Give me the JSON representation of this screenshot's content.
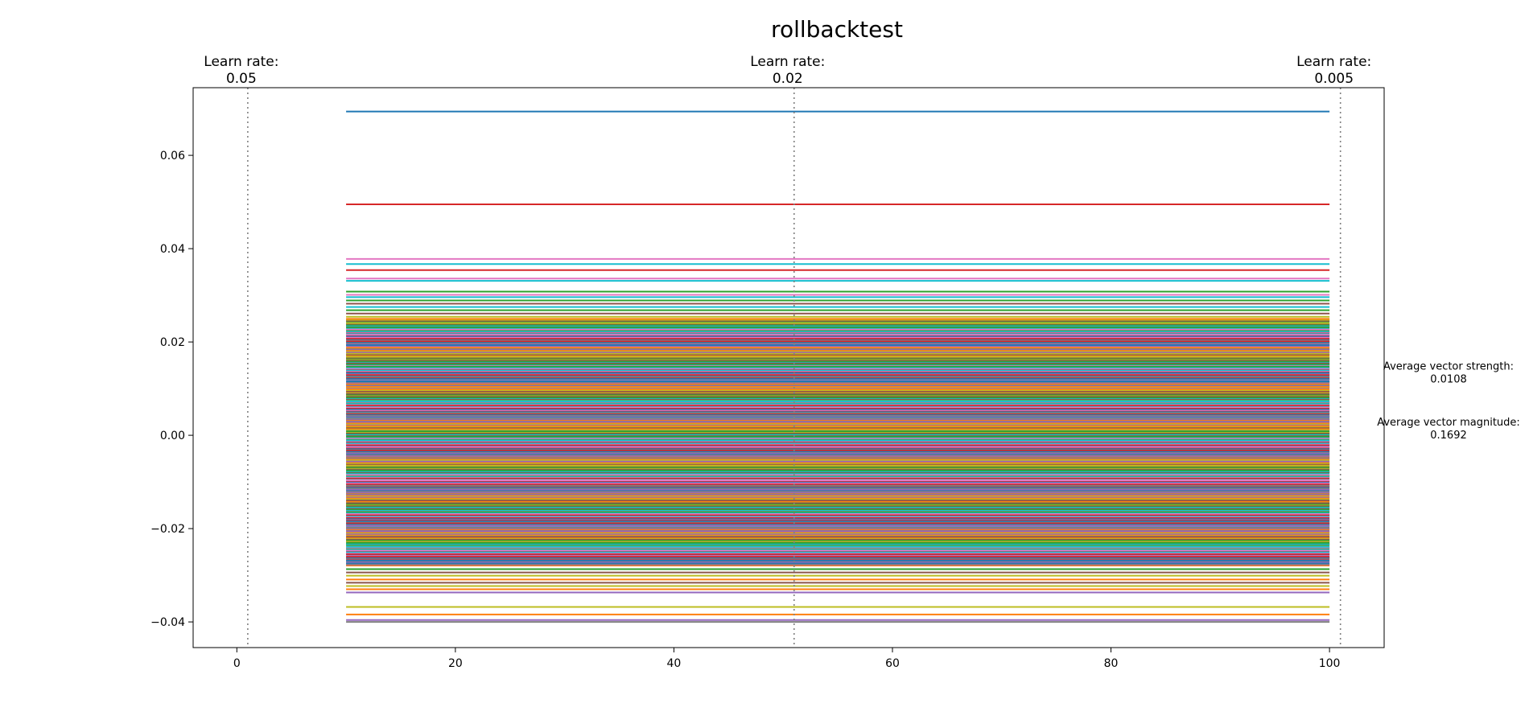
{
  "chart_data": {
    "type": "line",
    "title": "rollbacktest",
    "xlabel": "",
    "ylabel": "",
    "xlim": [
      -4,
      105
    ],
    "ylim": [
      -0.0455,
      0.0745
    ],
    "x_ticks": [
      0,
      20,
      40,
      60,
      80,
      100
    ],
    "y_ticks": [
      -0.04,
      -0.02,
      0.0,
      0.02,
      0.04,
      0.06
    ],
    "y_tick_labels": [
      "−0.04",
      "−0.02",
      "0.00",
      "0.02",
      "0.04",
      "0.06"
    ],
    "grid": false,
    "series_x_range": [
      10,
      100
    ],
    "series_count": 300,
    "series_colors": [
      "#1f77b4",
      "#ff7f0e",
      "#2ca02c",
      "#d62728",
      "#9467bd",
      "#8c564b",
      "#e377c2",
      "#7f7f7f",
      "#bcbd22",
      "#17becf"
    ],
    "outlier_levels": [
      0.0694,
      0.0495,
      0.0378,
      0.0367,
      0.0354,
      0.0336,
      0.0331,
      0.0308,
      0.0301,
      0.0296,
      0.0289,
      0.0282,
      0.0275,
      0.0268,
      0.0261,
      0.0254,
      -0.0287,
      -0.0294,
      -0.0301,
      -0.0309,
      -0.0316,
      -0.0323,
      -0.033,
      -0.0337,
      -0.0368,
      -0.0384,
      -0.0396,
      -0.04
    ],
    "dense_band": [
      -0.028,
      0.025
    ],
    "learn_rate_markers": [
      {
        "x": 1,
        "label": "Learn rate:",
        "value": "0.05"
      },
      {
        "x": 51,
        "label": "Learn rate:",
        "value": "0.02"
      },
      {
        "x": 101,
        "label": "Learn rate:",
        "value": "0.005"
      }
    ],
    "annotations": [
      {
        "label": "Average vector strength:",
        "value": "0.0108",
        "y": 0.0125
      },
      {
        "label": "Average vector magnitude:",
        "value": "0.1692",
        "y": 0.0005
      }
    ]
  }
}
